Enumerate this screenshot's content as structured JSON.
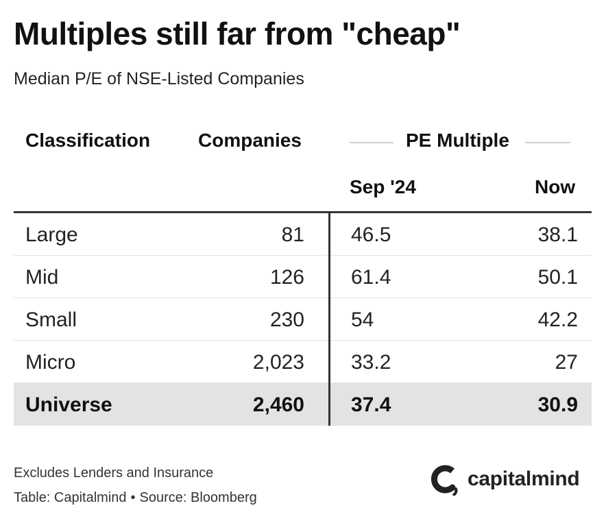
{
  "title": "Multiples still far from \"cheap\"",
  "subtitle": "Median P/E of NSE-Listed Companies",
  "chart_data": {
    "type": "table",
    "title": "Multiples still far from \"cheap\"",
    "subtitle": "Median P/E of NSE-Listed Companies",
    "headers": {
      "classification": "Classification",
      "companies": "Companies",
      "pe_group": "PE Multiple",
      "sep24": "Sep '24",
      "now": "Now"
    },
    "rows": [
      {
        "classification": "Large",
        "companies": "81",
        "sep24": "46.5",
        "now": "38.1"
      },
      {
        "classification": "Mid",
        "companies": "126",
        "sep24": "61.4",
        "now": "50.1"
      },
      {
        "classification": "Small",
        "companies": "230",
        "sep24": "54",
        "now": "42.2"
      },
      {
        "classification": "Micro",
        "companies": "2,023",
        "sep24": "33.2",
        "now": "27"
      }
    ],
    "total": {
      "classification": "Universe",
      "companies": "2,460",
      "sep24": "37.4",
      "now": "30.9"
    }
  },
  "footer": {
    "note": "Excludes Lenders and Insurance",
    "table_credit": "Table: Capitalmind",
    "separator": "•",
    "source": "Source: Bloomberg"
  },
  "logo": {
    "name": "capitalmind",
    "icon": "capitalmind-logo-icon"
  },
  "colors": {
    "text": "#222222",
    "total_row_bg": "#e3e3e3",
    "rule": "#333333",
    "row_border": "#e2e2e2"
  }
}
